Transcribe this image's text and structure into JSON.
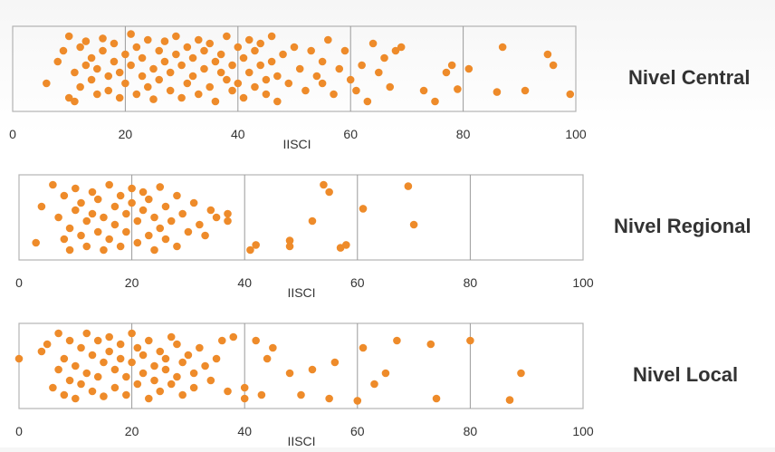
{
  "colors": {
    "point": "#ee8b2a",
    "frame": "#b3b3b3",
    "grid": "#9a9a9a",
    "text": "#333333"
  },
  "chart_data": [
    {
      "type": "scatter",
      "title": "Nivel Central",
      "xlabel": "IISCI",
      "xlim": [
        0,
        100
      ],
      "xticks": [
        "0",
        "20",
        "40",
        "60",
        "80",
        "100"
      ],
      "grid": true,
      "points": [
        [
          6,
          0.3
        ],
        [
          8,
          0.6
        ],
        [
          9,
          0.75
        ],
        [
          10,
          0.95
        ],
        [
          10,
          0.1
        ],
        [
          11,
          0.45
        ],
        [
          11,
          0.05
        ],
        [
          12,
          0.8
        ],
        [
          12,
          0.25
        ],
        [
          13,
          0.55
        ],
        [
          13,
          0.88
        ],
        [
          14,
          0.35
        ],
        [
          14,
          0.65
        ],
        [
          15,
          0.15
        ],
        [
          15,
          0.5
        ],
        [
          16,
          0.75
        ],
        [
          16,
          0.92
        ],
        [
          17,
          0.4
        ],
        [
          17,
          0.2
        ],
        [
          18,
          0.6
        ],
        [
          18,
          0.85
        ],
        [
          19,
          0.1
        ],
        [
          19,
          0.45
        ],
        [
          20,
          0.7
        ],
        [
          20,
          0.3
        ],
        [
          21,
          0.98
        ],
        [
          21,
          0.55
        ],
        [
          22,
          0.15
        ],
        [
          22,
          0.8
        ],
        [
          23,
          0.4
        ],
        [
          23,
          0.65
        ],
        [
          24,
          0.9
        ],
        [
          24,
          0.25
        ],
        [
          25,
          0.5
        ],
        [
          25,
          0.08
        ],
        [
          26,
          0.75
        ],
        [
          26,
          0.35
        ],
        [
          27,
          0.6
        ],
        [
          27,
          0.88
        ],
        [
          28,
          0.2
        ],
        [
          28,
          0.45
        ],
        [
          29,
          0.7
        ],
        [
          29,
          0.95
        ],
        [
          30,
          0.1
        ],
        [
          30,
          0.55
        ],
        [
          31,
          0.8
        ],
        [
          31,
          0.3
        ],
        [
          32,
          0.65
        ],
        [
          32,
          0.4
        ],
        [
          33,
          0.9
        ],
        [
          33,
          0.15
        ],
        [
          34,
          0.5
        ],
        [
          34,
          0.75
        ],
        [
          35,
          0.25
        ],
        [
          35,
          0.85
        ],
        [
          36,
          0.6
        ],
        [
          36,
          0.05
        ],
        [
          37,
          0.45
        ],
        [
          37,
          0.7
        ],
        [
          38,
          0.95
        ],
        [
          38,
          0.35
        ],
        [
          39,
          0.2
        ],
        [
          39,
          0.55
        ],
        [
          40,
          0.8
        ],
        [
          40,
          0.3
        ],
        [
          41,
          0.65
        ],
        [
          41,
          0.1
        ],
        [
          42,
          0.9
        ],
        [
          42,
          0.45
        ],
        [
          43,
          0.25
        ],
        [
          43,
          0.75
        ],
        [
          44,
          0.55
        ],
        [
          44,
          0.85
        ],
        [
          45,
          0.35
        ],
        [
          45,
          0.15
        ],
        [
          46,
          0.6
        ],
        [
          46,
          0.95
        ],
        [
          47,
          0.4
        ],
        [
          47,
          0.05
        ],
        [
          48,
          0.7
        ],
        [
          49,
          0.3
        ],
        [
          50,
          0.8
        ],
        [
          51,
          0.5
        ],
        [
          52,
          0.2
        ],
        [
          53,
          0.75
        ],
        [
          54,
          0.4
        ],
        [
          55,
          0.6
        ],
        [
          55,
          0.3
        ],
        [
          56,
          0.9
        ],
        [
          57,
          0.15
        ],
        [
          58,
          0.5
        ],
        [
          59,
          0.75
        ],
        [
          60,
          0.35
        ],
        [
          61,
          0.2
        ],
        [
          62,
          0.55
        ],
        [
          63,
          0.05
        ],
        [
          64,
          0.85
        ],
        [
          65,
          0.45
        ],
        [
          66,
          0.65
        ],
        [
          67,
          0.25
        ],
        [
          68,
          0.75
        ],
        [
          69,
          0.8
        ],
        [
          73,
          0.2
        ],
        [
          75,
          0.05
        ],
        [
          77,
          0.45
        ],
        [
          78,
          0.55
        ],
        [
          79,
          0.22
        ],
        [
          81,
          0.5
        ],
        [
          87,
          0.8
        ],
        [
          86,
          0.18
        ],
        [
          91,
          0.2
        ],
        [
          95,
          0.7
        ],
        [
          96,
          0.55
        ],
        [
          99,
          0.15
        ]
      ]
    },
    {
      "type": "scatter",
      "title": "Nivel Regional",
      "xlabel": "IISCI",
      "xlim": [
        0,
        100
      ],
      "xticks": [
        "0",
        "20",
        "40",
        "60",
        "80",
        "100"
      ],
      "grid": true,
      "points": [
        [
          3,
          0.15
        ],
        [
          4,
          0.65
        ],
        [
          6,
          0.95
        ],
        [
          7,
          0.5
        ],
        [
          8,
          0.2
        ],
        [
          8,
          0.8
        ],
        [
          9,
          0.35
        ],
        [
          9,
          0.05
        ],
        [
          10,
          0.6
        ],
        [
          10,
          0.9
        ],
        [
          11,
          0.25
        ],
        [
          11,
          0.7
        ],
        [
          12,
          0.45
        ],
        [
          12,
          0.1
        ],
        [
          13,
          0.85
        ],
        [
          13,
          0.55
        ],
        [
          14,
          0.3
        ],
        [
          14,
          0.75
        ],
        [
          15,
          0.05
        ],
        [
          15,
          0.5
        ],
        [
          16,
          0.95
        ],
        [
          16,
          0.2
        ],
        [
          17,
          0.65
        ],
        [
          17,
          0.4
        ],
        [
          18,
          0.8
        ],
        [
          18,
          0.1
        ],
        [
          19,
          0.55
        ],
        [
          19,
          0.3
        ],
        [
          20,
          0.7
        ],
        [
          20,
          0.9
        ],
        [
          21,
          0.15
        ],
        [
          21,
          0.45
        ],
        [
          22,
          0.6
        ],
        [
          22,
          0.85
        ],
        [
          23,
          0.25
        ],
        [
          23,
          0.75
        ],
        [
          24,
          0.05
        ],
        [
          24,
          0.5
        ],
        [
          25,
          0.35
        ],
        [
          25,
          0.92
        ],
        [
          26,
          0.65
        ],
        [
          26,
          0.2
        ],
        [
          27,
          0.45
        ],
        [
          28,
          0.8
        ],
        [
          28,
          0.1
        ],
        [
          29,
          0.55
        ],
        [
          30,
          0.3
        ],
        [
          31,
          0.7
        ],
        [
          32,
          0.4
        ],
        [
          33,
          0.25
        ],
        [
          34,
          0.6
        ],
        [
          35,
          0.5
        ],
        [
          37,
          0.55
        ],
        [
          37,
          0.45
        ],
        [
          41,
          0.05
        ],
        [
          42,
          0.12
        ],
        [
          48,
          0.18
        ],
        [
          48,
          0.1
        ],
        [
          52,
          0.45
        ],
        [
          54,
          0.95
        ],
        [
          55,
          0.85
        ],
        [
          57,
          0.08
        ],
        [
          58,
          0.12
        ],
        [
          61,
          0.62
        ],
        [
          69,
          0.93
        ],
        [
          70,
          0.4
        ]
      ]
    },
    {
      "type": "scatter",
      "title": "Nivel Local",
      "xlabel": "IISCI",
      "xlim": [
        0,
        100
      ],
      "xticks": [
        "0",
        "20",
        "40",
        "60",
        "80",
        "100"
      ],
      "grid": true,
      "points": [
        [
          0,
          0.6
        ],
        [
          4,
          0.7
        ],
        [
          5,
          0.8
        ],
        [
          6,
          0.2
        ],
        [
          7,
          0.45
        ],
        [
          7,
          0.95
        ],
        [
          8,
          0.1
        ],
        [
          8,
          0.6
        ],
        [
          9,
          0.3
        ],
        [
          9,
          0.85
        ],
        [
          10,
          0.5
        ],
        [
          10,
          0.05
        ],
        [
          11,
          0.75
        ],
        [
          11,
          0.25
        ],
        [
          12,
          0.4
        ],
        [
          12,
          0.95
        ],
        [
          13,
          0.65
        ],
        [
          13,
          0.15
        ],
        [
          14,
          0.85
        ],
        [
          14,
          0.35
        ],
        [
          15,
          0.55
        ],
        [
          15,
          0.08
        ],
        [
          16,
          0.7
        ],
        [
          16,
          0.9
        ],
        [
          17,
          0.2
        ],
        [
          17,
          0.45
        ],
        [
          18,
          0.6
        ],
        [
          18,
          0.8
        ],
        [
          19,
          0.1
        ],
        [
          19,
          0.35
        ],
        [
          20,
          0.55
        ],
        [
          20,
          0.95
        ],
        [
          21,
          0.25
        ],
        [
          21,
          0.75
        ],
        [
          22,
          0.4
        ],
        [
          22,
          0.65
        ],
        [
          23,
          0.05
        ],
        [
          23,
          0.85
        ],
        [
          24,
          0.3
        ],
        [
          24,
          0.5
        ],
        [
          25,
          0.7
        ],
        [
          25,
          0.15
        ],
        [
          26,
          0.45
        ],
        [
          26,
          0.6
        ],
        [
          27,
          0.9
        ],
        [
          27,
          0.25
        ],
        [
          28,
          0.35
        ],
        [
          28,
          0.8
        ],
        [
          29,
          0.55
        ],
        [
          29,
          0.1
        ],
        [
          30,
          0.65
        ],
        [
          31,
          0.4
        ],
        [
          31,
          0.2
        ],
        [
          32,
          0.75
        ],
        [
          33,
          0.5
        ],
        [
          34,
          0.3
        ],
        [
          35,
          0.6
        ],
        [
          36,
          0.85
        ],
        [
          37,
          0.15
        ],
        [
          38,
          0.9
        ],
        [
          40,
          0.2
        ],
        [
          40,
          0.05
        ],
        [
          42,
          0.85
        ],
        [
          43,
          0.1
        ],
        [
          44,
          0.6
        ],
        [
          45,
          0.75
        ],
        [
          48,
          0.4
        ],
        [
          50,
          0.1
        ],
        [
          52,
          0.45
        ],
        [
          55,
          0.05
        ],
        [
          56,
          0.55
        ],
        [
          60,
          0.02
        ],
        [
          61,
          0.75
        ],
        [
          63,
          0.25
        ],
        [
          65,
          0.4
        ],
        [
          67,
          0.85
        ],
        [
          73,
          0.8
        ],
        [
          74,
          0.05
        ],
        [
          80,
          0.85
        ],
        [
          87,
          0.03
        ],
        [
          89,
          0.4
        ]
      ]
    }
  ]
}
